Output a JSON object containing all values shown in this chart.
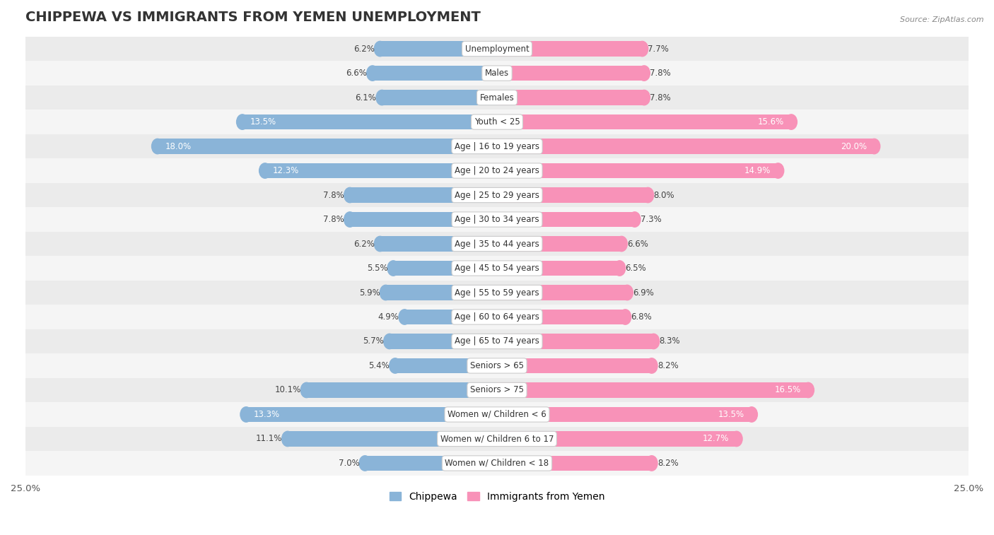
{
  "title": "CHIPPEWA VS IMMIGRANTS FROM YEMEN UNEMPLOYMENT",
  "source": "Source: ZipAtlas.com",
  "categories": [
    "Unemployment",
    "Males",
    "Females",
    "Youth < 25",
    "Age | 16 to 19 years",
    "Age | 20 to 24 years",
    "Age | 25 to 29 years",
    "Age | 30 to 34 years",
    "Age | 35 to 44 years",
    "Age | 45 to 54 years",
    "Age | 55 to 59 years",
    "Age | 60 to 64 years",
    "Age | 65 to 74 years",
    "Seniors > 65",
    "Seniors > 75",
    "Women w/ Children < 6",
    "Women w/ Children 6 to 17",
    "Women w/ Children < 18"
  ],
  "chippewa": [
    6.2,
    6.6,
    6.1,
    13.5,
    18.0,
    12.3,
    7.8,
    7.8,
    6.2,
    5.5,
    5.9,
    4.9,
    5.7,
    5.4,
    10.1,
    13.3,
    11.1,
    7.0
  ],
  "yemen": [
    7.7,
    7.8,
    7.8,
    15.6,
    20.0,
    14.9,
    8.0,
    7.3,
    6.6,
    6.5,
    6.9,
    6.8,
    8.3,
    8.2,
    16.5,
    13.5,
    12.7,
    8.2
  ],
  "chippewa_color": "#8ab4d8",
  "yemen_color": "#f892b8",
  "bar_height": 0.62,
  "xlim_left": -25,
  "xlim_right": 25,
  "row_bg_even": "#ebebeb",
  "row_bg_odd": "#f5f5f5",
  "title_fontsize": 14,
  "label_fontsize": 8.5,
  "value_fontsize": 8.5,
  "tick_fontsize": 9.5,
  "threshold_white_text": 12.0
}
